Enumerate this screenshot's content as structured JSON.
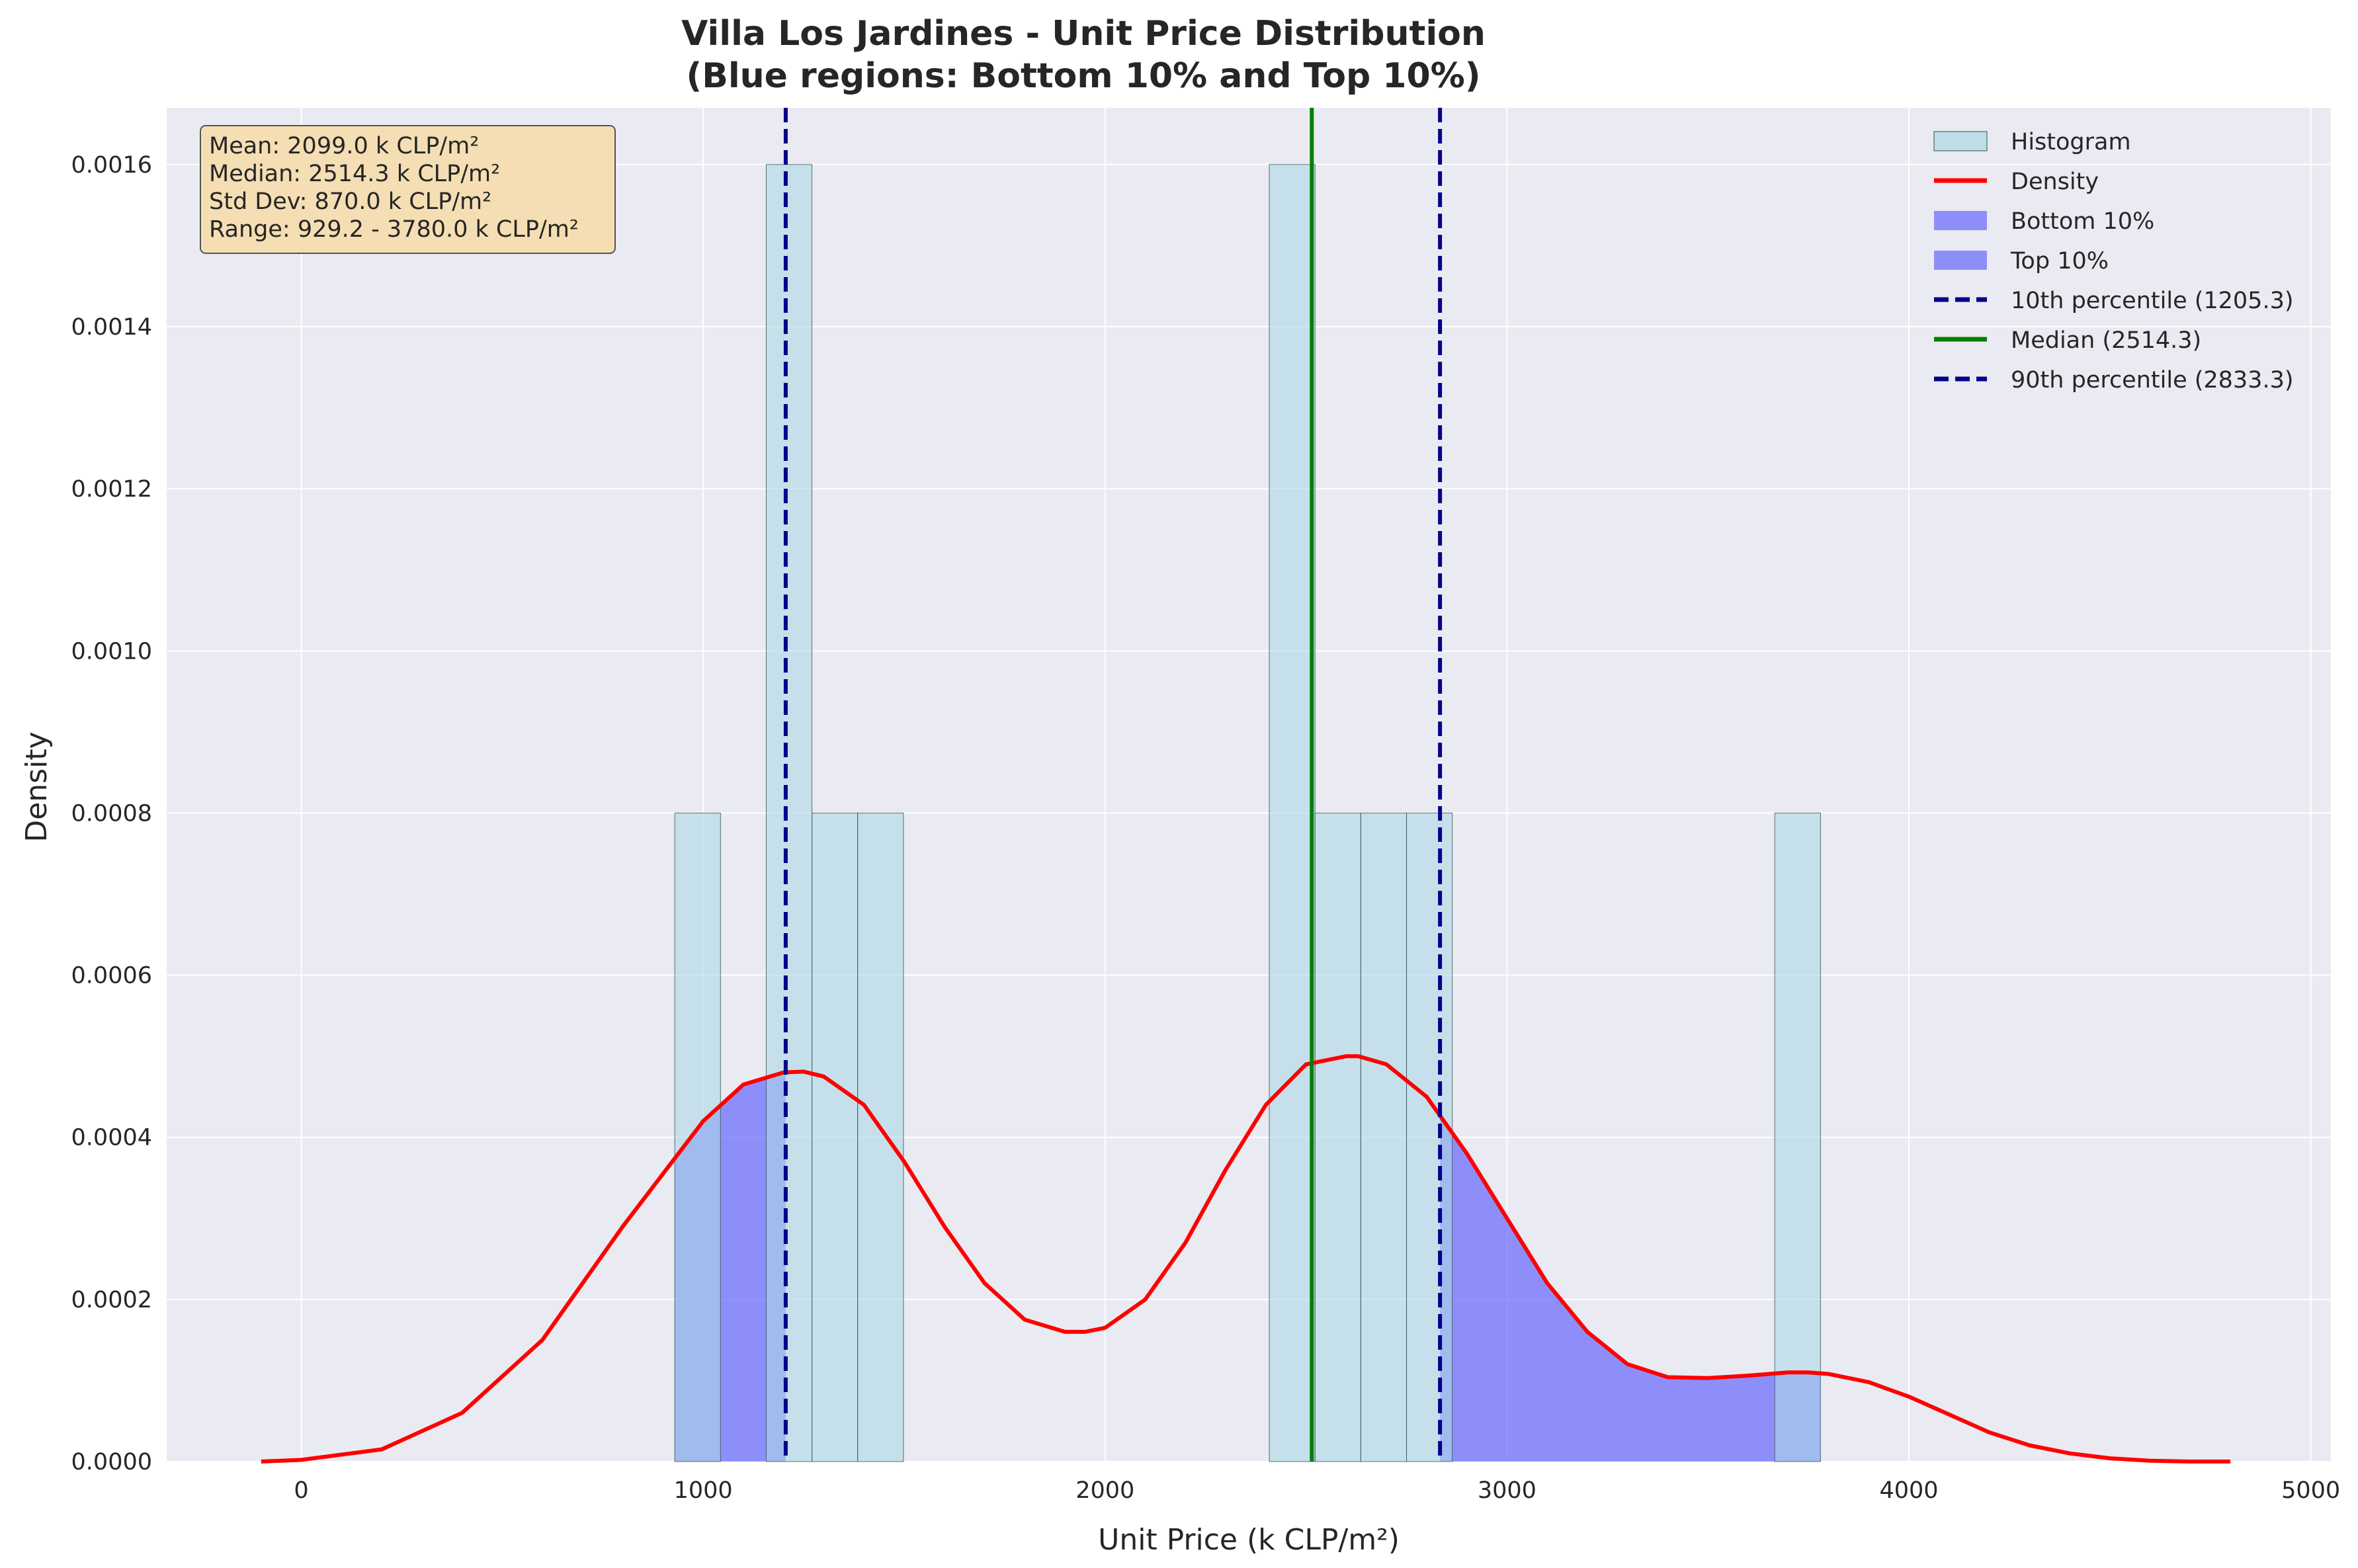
{
  "chart_data": {
    "type": "histogram",
    "title_line1": "Villa Los Jardines - Unit Price Distribution",
    "title_line2": "(Blue regions: Bottom 10% and Top 10%)",
    "xlabel": "Unit Price (k CLP/m²)",
    "ylabel": "Density",
    "xlim": [
      -335,
      5050
    ],
    "ylim": [
      0,
      0.00167
    ],
    "x_ticks": [
      0,
      1000,
      2000,
      3000,
      4000,
      5000
    ],
    "y_ticks": [
      0.0,
      0.0002,
      0.0004,
      0.0006,
      0.0008,
      0.001,
      0.0012,
      0.0014,
      0.0016
    ],
    "y_tick_labels": [
      "0.0000",
      "0.0002",
      "0.0004",
      "0.0006",
      "0.0008",
      "0.0010",
      "0.0012",
      "0.0014",
      "0.0016"
    ],
    "grid": true,
    "histogram": {
      "name": "Histogram",
      "bins": [
        {
          "x0": 929.2,
          "x1": 1043.0,
          "density": 0.0008
        },
        {
          "x0": 1156.8,
          "x1": 1270.6,
          "density": 0.0016
        },
        {
          "x0": 1270.6,
          "x1": 1384.4,
          "density": 0.0008
        },
        {
          "x0": 1384.4,
          "x1": 1498.2,
          "density": 0.0008
        },
        {
          "x0": 2408.6,
          "x1": 2522.4,
          "density": 0.0016
        },
        {
          "x0": 2522.4,
          "x1": 2636.2,
          "density": 0.0008
        },
        {
          "x0": 2636.2,
          "x1": 2750.0,
          "density": 0.0008
        },
        {
          "x0": 2750.0,
          "x1": 2863.8,
          "density": 0.0008
        },
        {
          "x0": 3666.2,
          "x1": 3780.0,
          "density": 0.0008
        }
      ],
      "color": "#add8e6"
    },
    "density_curve": {
      "name": "Density",
      "color": "#ff0000",
      "x": [
        -100,
        0,
        200,
        400,
        600,
        800,
        1000,
        1100,
        1200,
        1250,
        1300,
        1400,
        1500,
        1600,
        1700,
        1800,
        1900,
        1950,
        2000,
        2100,
        2200,
        2300,
        2400,
        2500,
        2600,
        2630,
        2700,
        2800,
        2900,
        3000,
        3100,
        3200,
        3300,
        3400,
        3500,
        3600,
        3700,
        3750,
        3800,
        3900,
        4000,
        4100,
        4200,
        4300,
        4400,
        4500,
        4600,
        4700,
        4800
      ],
      "y": [
        0.0,
        2e-06,
        1.5e-05,
        6e-05,
        0.00015,
        0.00029,
        0.00042,
        0.000465,
        0.00048,
        0.000481,
        0.000475,
        0.00044,
        0.00037,
        0.00029,
        0.00022,
        0.000175,
        0.00016,
        0.00016,
        0.000165,
        0.0002,
        0.00027,
        0.00036,
        0.00044,
        0.00049,
        0.0005,
        0.0005,
        0.00049,
        0.00045,
        0.00038,
        0.0003,
        0.00022,
        0.00016,
        0.00012,
        0.000104,
        0.000103,
        0.000106,
        0.00011,
        0.00011,
        0.000108,
        9.8e-05,
        8e-05,
        5.8e-05,
        3.6e-05,
        2e-05,
        1e-05,
        4e-06,
        1e-06,
        0.0,
        0.0
      ]
    },
    "shaded_regions": [
      {
        "name": "Bottom 10%",
        "x0": 929.2,
        "x1": 1205.3,
        "color": "#6666ff"
      },
      {
        "name": "Top 10%",
        "x0": 2833.3,
        "x1": 3780.0,
        "color": "#6666ff"
      }
    ],
    "reference_lines": [
      {
        "name": "10th percentile (1205.3)",
        "x": 1205.3,
        "color": "#00008b",
        "style": "dashed"
      },
      {
        "name": "Median (2514.3)",
        "x": 2514.3,
        "color": "#008000",
        "style": "solid"
      },
      {
        "name": "90th percentile (2833.3)",
        "x": 2833.3,
        "color": "#00008b",
        "style": "dashed"
      }
    ],
    "legend": {
      "placement": "top-right",
      "entries": [
        "Histogram",
        "Density",
        "Bottom 10%",
        "Top 10%",
        "10th percentile (1205.3)",
        "Median (2514.3)",
        "90th percentile (2833.3)"
      ]
    },
    "stats_box": {
      "lines": [
        "Mean: 2099.0 k CLP/m²",
        "Median: 2514.3 k CLP/m²",
        "Std Dev: 870.0 k CLP/m²",
        "Range: 929.2 - 3780.0 k CLP/m²"
      ],
      "placement": "top-left",
      "background": "#f5deb3"
    }
  }
}
